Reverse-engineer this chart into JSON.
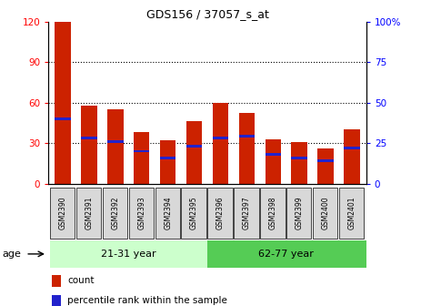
{
  "title": "GDS156 / 37057_s_at",
  "samples": [
    "GSM2390",
    "GSM2391",
    "GSM2392",
    "GSM2393",
    "GSM2394",
    "GSM2395",
    "GSM2396",
    "GSM2397",
    "GSM2398",
    "GSM2399",
    "GSM2400",
    "GSM2401"
  ],
  "counts": [
    120,
    58,
    55,
    38,
    32,
    46,
    60,
    52,
    33,
    31,
    26,
    40
  ],
  "percentiles": [
    40,
    28,
    26,
    20,
    16,
    23,
    28,
    29,
    18,
    16,
    14,
    22
  ],
  "group1_label": "21-31 year",
  "group2_label": "62-77 year",
  "bar_color": "#cc2200",
  "percentile_color": "#2222cc",
  "group1_bg": "#ccffcc",
  "group2_bg": "#55cc55",
  "age_label": "age",
  "ylim_left": [
    0,
    120
  ],
  "ylim_right": [
    0,
    100
  ],
  "yticks_left": [
    0,
    30,
    60,
    90,
    120
  ],
  "yticks_right": [
    0,
    25,
    50,
    75,
    100
  ],
  "legend_count": "count",
  "legend_percentile": "percentile rank within the sample",
  "bar_width": 0.6,
  "percentile_bar_height": 2.0
}
